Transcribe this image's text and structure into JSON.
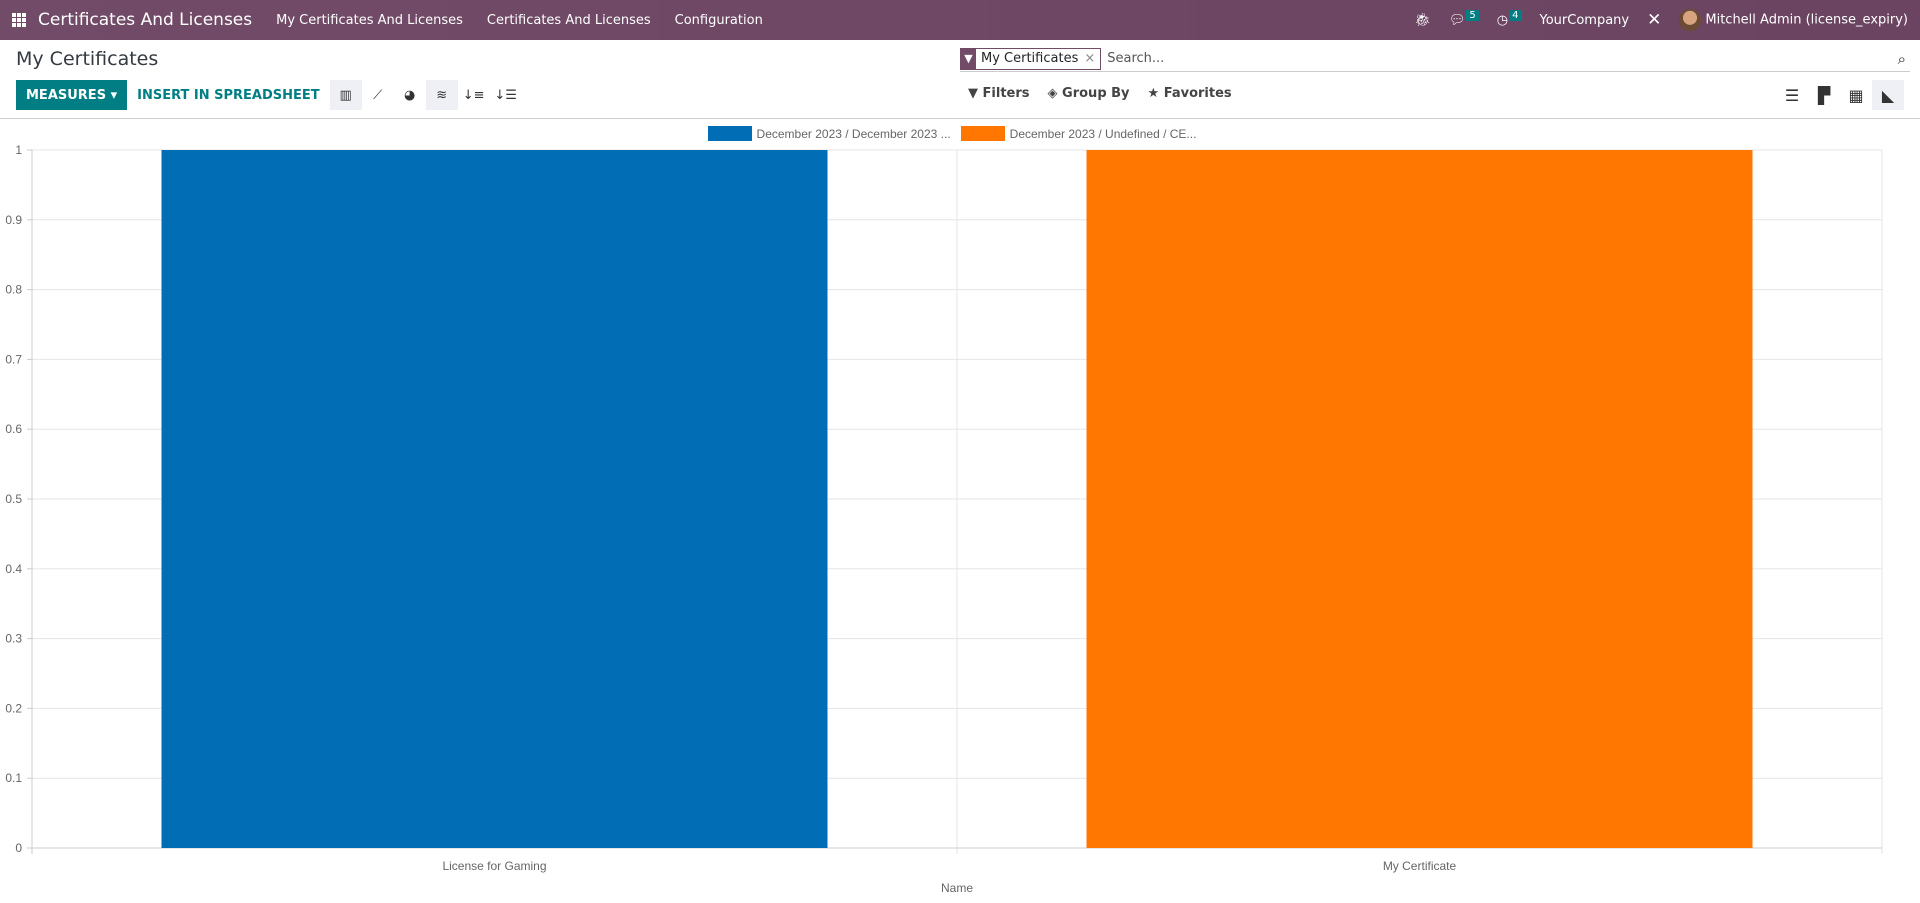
{
  "navbar": {
    "brand": "Certificates And Licenses",
    "menu": [
      "My Certificates And Licenses",
      "Certificates And Licenses",
      "Configuration"
    ],
    "messages_count": "5",
    "activities_count": "4",
    "company": "YourCompany",
    "user": "Mitchell Admin (license_expiry)"
  },
  "page": {
    "title": "My Certificates"
  },
  "search": {
    "facet": "My Certificates",
    "placeholder": "Search..."
  },
  "toolbar": {
    "measures": "MEASURES",
    "insert": "INSERT IN SPREADSHEET",
    "filters": "Filters",
    "group_by": "Group By",
    "favorites": "Favorites"
  },
  "colors": {
    "navbar": "#714B67",
    "accent": "#017e84"
  },
  "chart_data": {
    "type": "bar",
    "stacked": true,
    "categories": [
      "License for Gaming",
      "My Certificate"
    ],
    "xlabel": "Name",
    "ylabel": "",
    "ylim": [
      0,
      1
    ],
    "yticks": [
      0,
      0.1,
      0.2,
      0.3,
      0.4,
      0.5,
      0.6,
      0.7,
      0.8,
      0.9,
      1
    ],
    "grid": true,
    "legend_position": "top",
    "series": [
      {
        "name": "December 2023 / December 2023 ...",
        "color": "#006DB5",
        "values": [
          1,
          0
        ]
      },
      {
        "name": "December 2023 / Undefined / CE...",
        "color": "#FF7700",
        "values": [
          0,
          1
        ]
      }
    ]
  }
}
